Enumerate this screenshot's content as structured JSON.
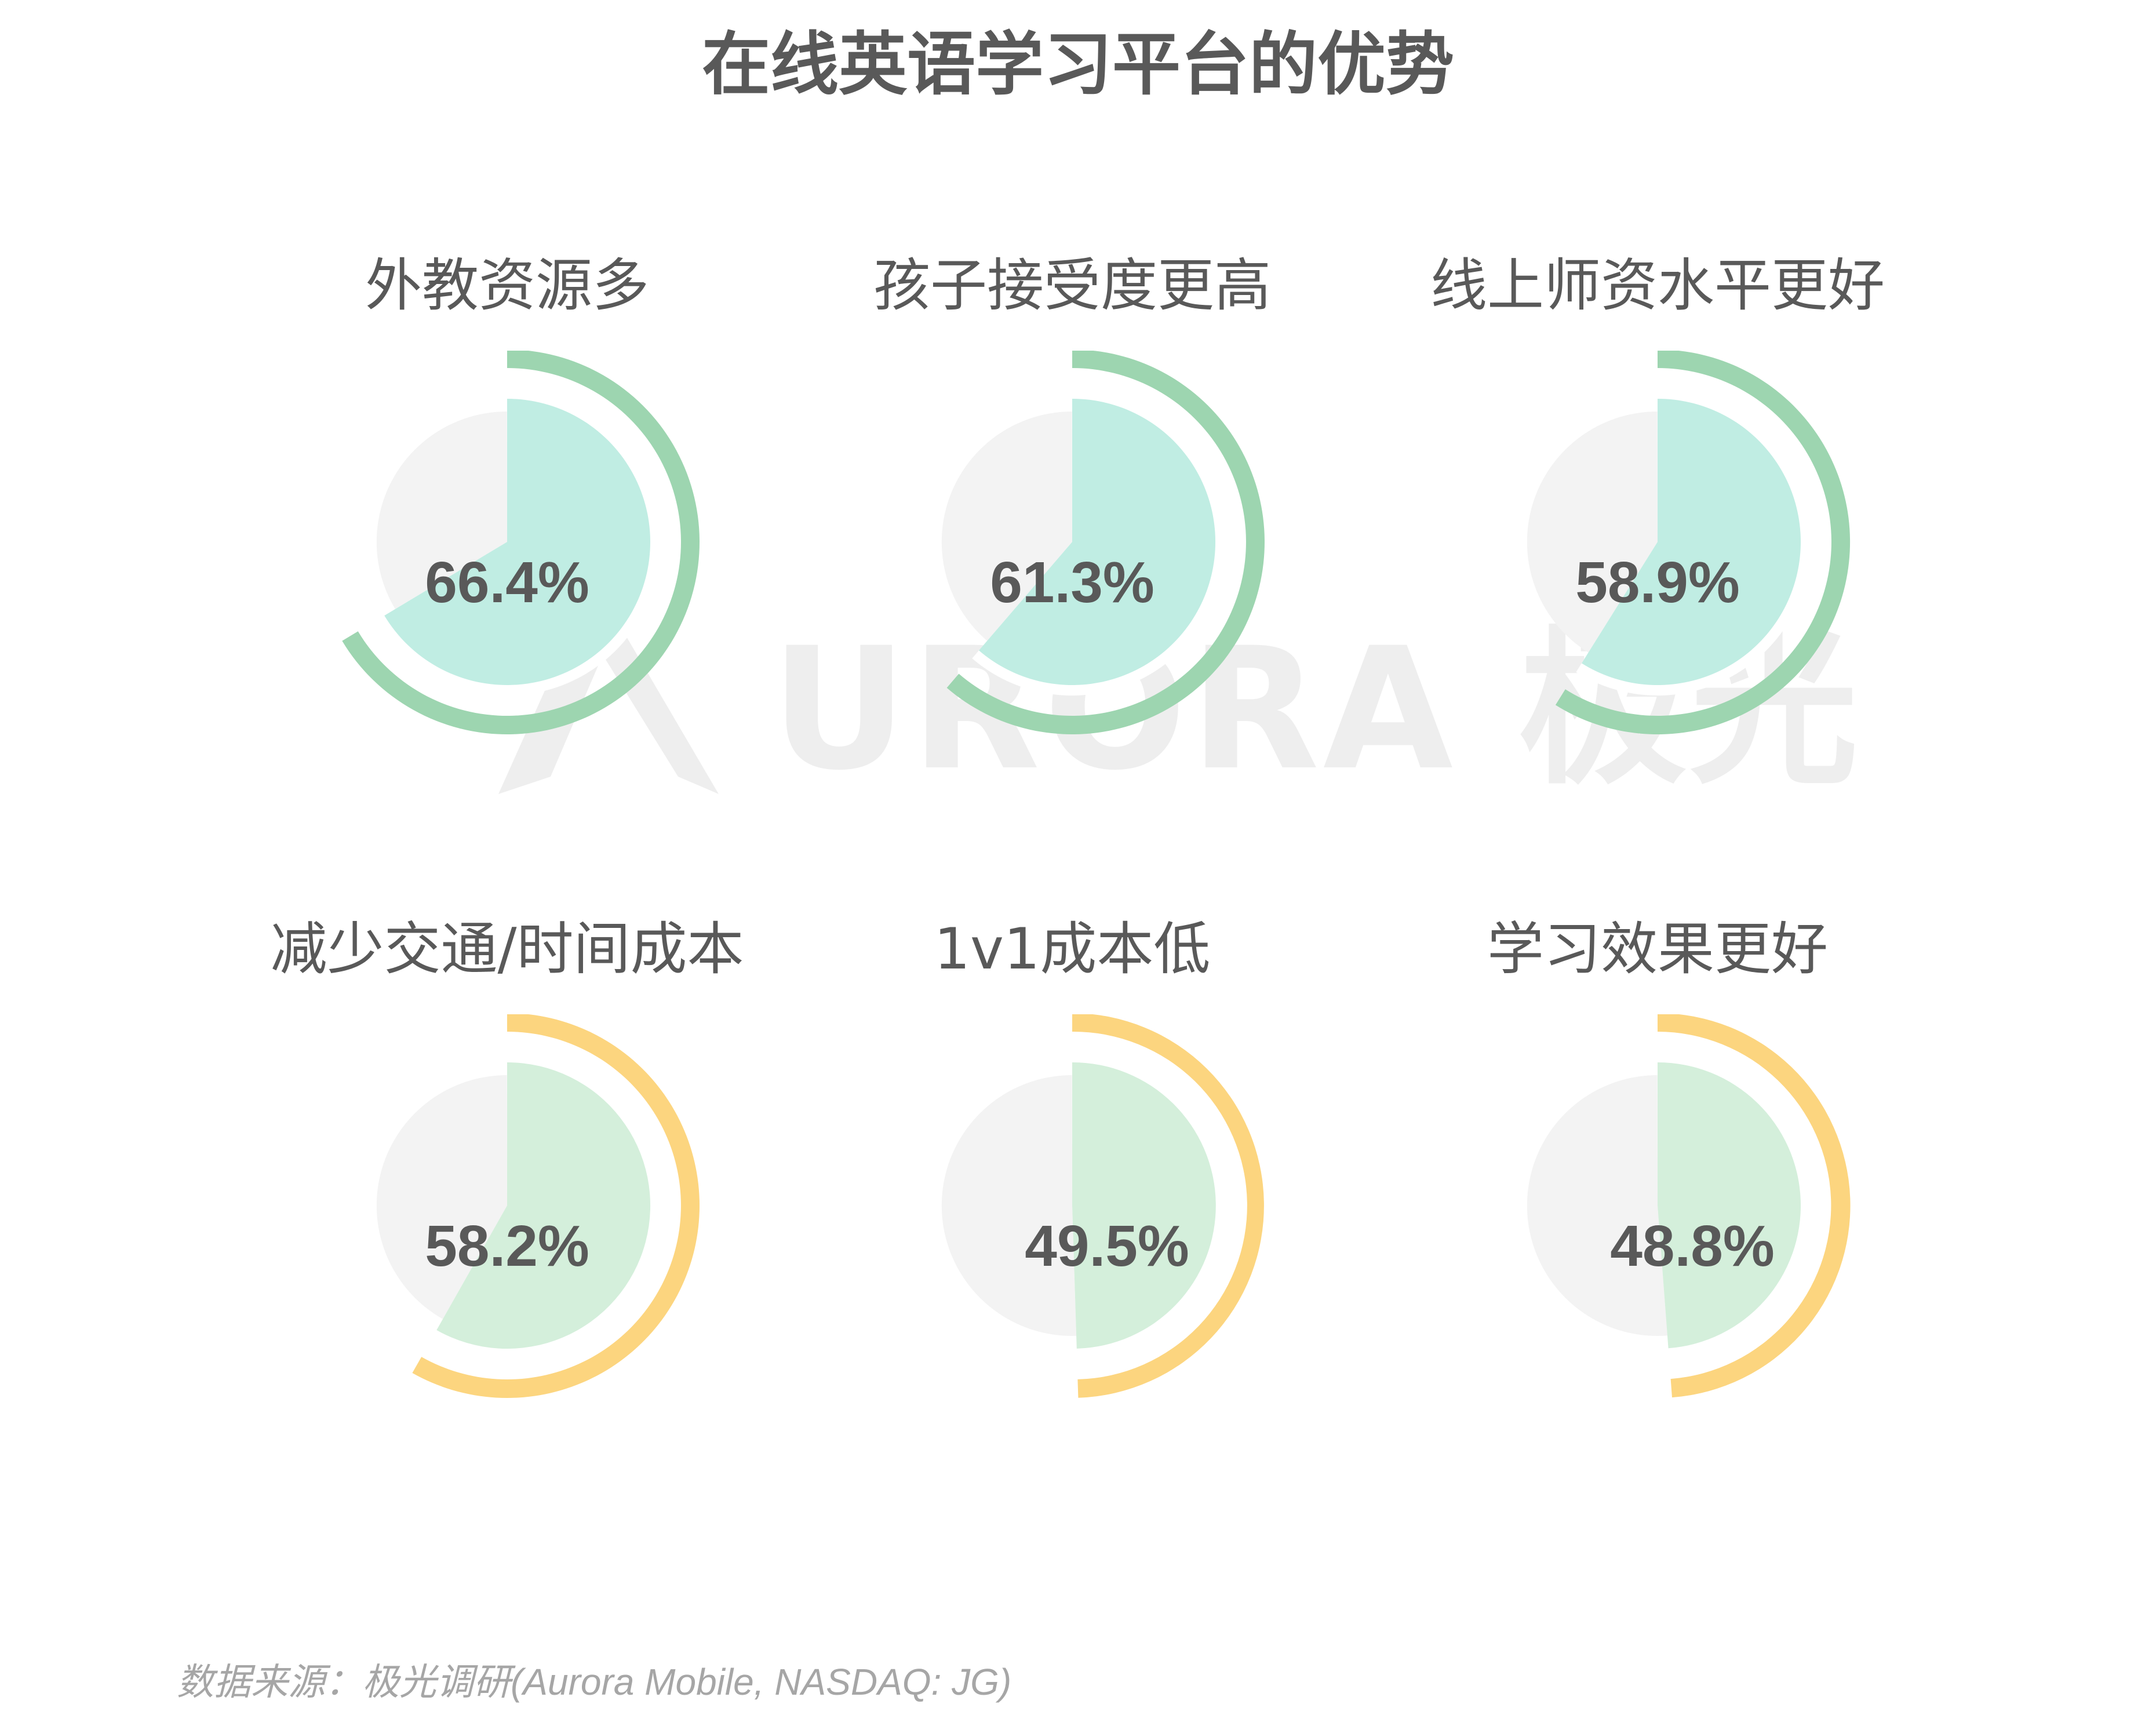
{
  "title": "在线英语学习平台的优势",
  "watermark": {
    "text": "URORA 极光"
  },
  "colors": {
    "top_ring": "#9dd5b0",
    "top_fill": "#c0ede3",
    "bottom_ring": "#fcd57f",
    "bottom_fill": "#d4efdb",
    "track": "#f3f3f3",
    "text": "#595959"
  },
  "chart_data": {
    "type": "pie",
    "title": "在线英语学习平台的优势",
    "unit": "%",
    "categories": [
      "外教资源多",
      "孩子接受度更高",
      "线上师资水平更好",
      "减少交通/时间成本",
      "1v1成本低",
      "学习效果更好"
    ],
    "values": [
      66.4,
      61.3,
      58.9,
      58.2,
      49.5,
      48.8
    ],
    "value_labels": [
      "66.4%",
      "61.3%",
      "58.9%",
      "58.2%",
      "49.5%",
      "48.8%"
    ]
  },
  "source": "数据来源：极光调研(Aurora Mobile, NASDAQ: JG)"
}
